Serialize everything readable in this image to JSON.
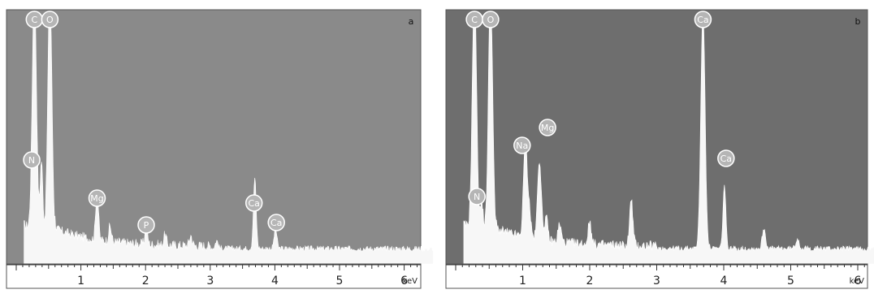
{
  "chart_data": [
    {
      "type": "area",
      "panel_label": "a",
      "x_unit": "keV",
      "xlim": [
        0,
        6.5
      ],
      "ylim": [
        0,
        100
      ],
      "x_ticks": [
        "1",
        "2",
        "3",
        "4",
        "5",
        "6"
      ],
      "background": "#8a8a8a",
      "fill": "#f7f7f7",
      "peaks": [
        {
          "label": "C",
          "x": 0.28,
          "height": 98
        },
        {
          "label": "O",
          "x": 0.52,
          "height": 98
        },
        {
          "label": "N",
          "x": 0.39,
          "height": 28
        },
        {
          "label": "Mg",
          "x": 1.25,
          "height": 20
        },
        {
          "label": "P",
          "x": 2.01,
          "height": 6
        },
        {
          "label": "Ca",
          "x": 3.69,
          "height": 28
        },
        {
          "label": "Ca",
          "x": 4.01,
          "height": 8
        }
      ]
    },
    {
      "type": "area",
      "panel_label": "b",
      "x_unit": "keV",
      "xlim": [
        0,
        6.5
      ],
      "ylim": [
        0,
        100
      ],
      "x_ticks": [
        "1",
        "2",
        "3",
        "4",
        "5",
        "6"
      ],
      "background": "#6e6e6e",
      "fill": "#f7f7f7",
      "peaks": [
        {
          "label": "C",
          "x": 0.28,
          "height": 98
        },
        {
          "label": "O",
          "x": 0.52,
          "height": 98
        },
        {
          "label": "N",
          "x": 0.39,
          "height": 12
        },
        {
          "label": "Na",
          "x": 1.04,
          "height": 38
        },
        {
          "label": "Mg",
          "x": 1.25,
          "height": 32
        },
        {
          "label": "Ca",
          "x": 3.69,
          "height": 95
        },
        {
          "label": "Ca",
          "x": 4.01,
          "height": 25
        }
      ]
    }
  ]
}
